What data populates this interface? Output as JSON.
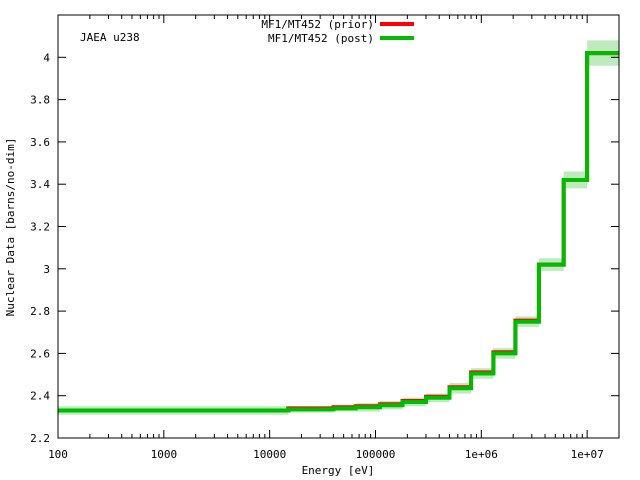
{
  "chart_data": {
    "type": "line",
    "step": true,
    "annotation": "JAEA u238",
    "xlabel": "Energy [eV]",
    "ylabel": "Nuclear Data [barns/no-dim]",
    "xscale": "log",
    "xlim": [
      100,
      20000000
    ],
    "ylim": [
      2.2,
      4.2
    ],
    "grid": false,
    "legend_position": "top-center",
    "x_ticks": [
      {
        "value": 100,
        "label": "100"
      },
      {
        "value": 1000,
        "label": "1000"
      },
      {
        "value": 10000,
        "label": "10000"
      },
      {
        "value": 100000,
        "label": "100000"
      },
      {
        "value": 1000000,
        "label": "1e+06"
      },
      {
        "value": 10000000,
        "label": "1e+07"
      }
    ],
    "y_ticks": [
      {
        "value": 2.2,
        "label": "2.2"
      },
      {
        "value": 2.4,
        "label": "2.4"
      },
      {
        "value": 2.6,
        "label": "2.6"
      },
      {
        "value": 2.8,
        "label": "2.8"
      },
      {
        "value": 3,
        "label": "3"
      },
      {
        "value": 3.2,
        "label": "3.2"
      },
      {
        "value": 3.4,
        "label": "3.4"
      },
      {
        "value": 3.6,
        "label": "3.6"
      },
      {
        "value": 3.8,
        "label": "3.8"
      },
      {
        "value": 4,
        "label": "4"
      }
    ],
    "bin_edges": [
      100,
      15000,
      25000,
      40000,
      65000,
      110000,
      180000,
      300000,
      500000,
      800000,
      1300000,
      2100000,
      3500000,
      6000000,
      10000000,
      20000000
    ],
    "series": [
      {
        "name": "MF1/MT452 (prior)",
        "color": "#ff0000",
        "values": [
          2.33,
          2.34,
          2.34,
          2.345,
          2.35,
          2.36,
          2.375,
          2.395,
          2.44,
          2.51,
          2.605,
          2.755,
          3.02,
          3.42,
          4.02
        ]
      },
      {
        "name": "MF1/MT452 (post)",
        "color": "#00bb00",
        "band_color": "#a8e4a8",
        "values": [
          2.33,
          2.335,
          2.335,
          2.34,
          2.345,
          2.355,
          2.37,
          2.39,
          2.435,
          2.505,
          2.6,
          2.75,
          3.02,
          3.42,
          4.02
        ],
        "uncertainty": [
          0.02,
          0.015,
          0.015,
          0.015,
          0.02,
          0.02,
          0.02,
          0.02,
          0.025,
          0.025,
          0.025,
          0.025,
          0.03,
          0.04,
          0.06
        ]
      }
    ]
  }
}
